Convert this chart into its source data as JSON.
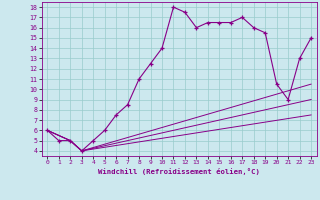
{
  "title": "",
  "xlabel": "Windchill (Refroidissement éolien,°C)",
  "bg_color": "#cce8ee",
  "line_color": "#880088",
  "grid_color": "#99cccc",
  "xlim": [
    -0.5,
    23.5
  ],
  "ylim": [
    3.5,
    18.5
  ],
  "xticks": [
    0,
    1,
    2,
    3,
    4,
    5,
    6,
    7,
    8,
    9,
    10,
    11,
    12,
    13,
    14,
    15,
    16,
    17,
    18,
    19,
    20,
    21,
    22,
    23
  ],
  "yticks": [
    4,
    5,
    6,
    7,
    8,
    9,
    10,
    11,
    12,
    13,
    14,
    15,
    16,
    17,
    18
  ],
  "main_line_x": [
    0,
    1,
    2,
    3,
    4,
    5,
    6,
    7,
    8,
    9,
    10,
    11,
    12,
    13,
    14,
    15,
    16,
    17,
    18,
    19,
    20,
    21,
    22,
    23
  ],
  "main_line_y": [
    6,
    5,
    5,
    4,
    5,
    6,
    7.5,
    8.5,
    11,
    12.5,
    14,
    18,
    17.5,
    16,
    16.5,
    16.5,
    16.5,
    17,
    16,
    15.5,
    10.5,
    9,
    13,
    15
  ],
  "ref_line1_x": [
    0,
    2,
    3,
    23
  ],
  "ref_line1_y": [
    6,
    5,
    4,
    10.5
  ],
  "ref_line2_x": [
    0,
    2,
    3,
    23
  ],
  "ref_line2_y": [
    6,
    5,
    4,
    9.0
  ],
  "ref_line3_x": [
    0,
    2,
    3,
    23
  ],
  "ref_line3_y": [
    6,
    5,
    4,
    7.5
  ]
}
